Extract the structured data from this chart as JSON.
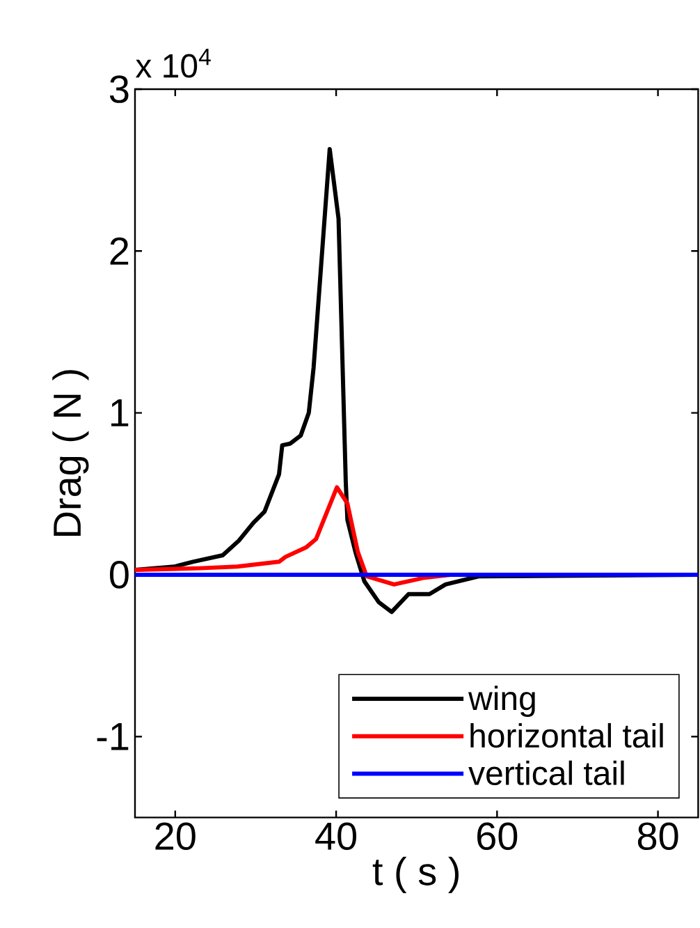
{
  "chart_data": {
    "type": "line",
    "xlabel": "t ( s )",
    "ylabel": "Drag ( N )",
    "annotations": [
      "x 10$^{4}$"
    ],
    "xlim": [
      15,
      85
    ],
    "xticks": [
      20,
      40,
      60,
      80
    ],
    "ylim": [
      -1.5,
      3
    ],
    "yticks": [
      -1,
      0,
      1,
      2,
      3
    ],
    "legend": "bottom right",
    "line_style": "solid",
    "marker": "none",
    "series": [
      {
        "name": "wing",
        "color": "#000000",
        "x": [
          15,
          19.9,
          22.2,
          25.9,
          27.9,
          29.7,
          31.1,
          32.9,
          33.3,
          34.3,
          35.6,
          36.6,
          37.2,
          39.2,
          40.3,
          41.2,
          41.4,
          42.4,
          43.5,
          45.3,
          46.9,
          49.0,
          51.6,
          53.6,
          57.7,
          85
        ],
        "values": [
          0.03,
          0.05,
          0.08,
          0.12,
          0.21,
          0.32,
          0.39,
          0.62,
          0.8,
          0.81,
          0.86,
          1.0,
          1.28,
          2.63,
          2.2,
          0.57,
          0.34,
          0.14,
          -0.04,
          -0.17,
          -0.23,
          -0.12,
          -0.12,
          -0.06,
          -0.01,
          0
        ]
      },
      {
        "name": "horizontal tail",
        "color": "#ff0000",
        "x": [
          15,
          23.0,
          27.7,
          32.9,
          33.7,
          36.3,
          37.5,
          40.1,
          41.4,
          42.7,
          43.8,
          47.2,
          50.8,
          54.2,
          85
        ],
        "values": [
          0.03,
          0.04,
          0.05,
          0.08,
          0.11,
          0.17,
          0.22,
          0.54,
          0.44,
          0.14,
          -0.01,
          -0.06,
          -0.02,
          0,
          0
        ]
      },
      {
        "name": "vertical tail",
        "color": "#0000ff",
        "x": [
          15,
          85
        ],
        "values": [
          0,
          0
        ]
      }
    ]
  }
}
